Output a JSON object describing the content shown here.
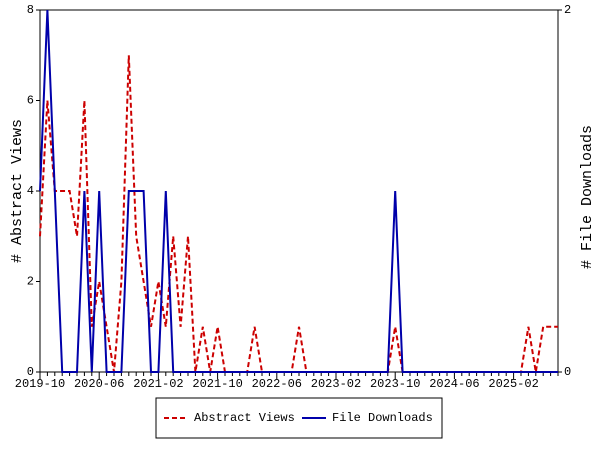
{
  "chart_data": {
    "type": "line",
    "categories": [
      "2019-10",
      null,
      null,
      null,
      null,
      null,
      null,
      null,
      "2020-06",
      null,
      null,
      null,
      null,
      null,
      null,
      null,
      "2021-02",
      null,
      null,
      null,
      null,
      null,
      null,
      null,
      "2021-10",
      null,
      null,
      null,
      null,
      null,
      null,
      null,
      "2022-06",
      null,
      null,
      null,
      null,
      null,
      null,
      null,
      "2023-02",
      null,
      null,
      null,
      null,
      null,
      null,
      null,
      "2023-10",
      null,
      null,
      null,
      null,
      null,
      null,
      null,
      "2024-06",
      null,
      null,
      null,
      null,
      null,
      null,
      null,
      "2025-02",
      null,
      null,
      null,
      null,
      null,
      null
    ],
    "y_label": "# Abstract Views",
    "y2_label": "# File Downloads",
    "ylim": [
      0,
      8
    ],
    "yticks": [
      0,
      2,
      4,
      6,
      8
    ],
    "y2lim": [
      0,
      2
    ],
    "y2ticks": [
      0,
      2
    ],
    "legend": "bottom",
    "series": [
      {
        "name": "Abstract Views",
        "color": "#cc0000",
        "dash": true,
        "values": [
          3,
          6,
          4,
          4,
          4,
          3,
          6,
          1,
          2,
          1,
          0,
          2,
          7,
          3,
          2,
          1,
          2,
          1,
          3,
          1,
          3,
          0,
          1,
          0,
          1,
          0,
          0,
          0,
          0,
          1,
          0,
          0,
          0,
          0,
          0,
          1,
          0,
          0,
          0,
          0,
          0,
          0,
          0,
          0,
          0,
          0,
          0,
          0,
          1,
          0,
          0,
          0,
          0,
          0,
          0,
          0,
          0,
          0,
          0,
          0,
          0,
          0,
          0,
          0,
          0,
          0,
          1,
          0,
          1,
          1,
          1
        ]
      },
      {
        "name": "File Downloads",
        "color": "#0000aa",
        "axis": "y2",
        "values": [
          1,
          2,
          1,
          0,
          0,
          0,
          1,
          0,
          1,
          0,
          0,
          0,
          1,
          1,
          1,
          0,
          0,
          1,
          0,
          0,
          0,
          0,
          0,
          0,
          0,
          0,
          0,
          0,
          0,
          0,
          0,
          0,
          0,
          0,
          0,
          0,
          0,
          0,
          0,
          0,
          0,
          0,
          0,
          0,
          0,
          0,
          0,
          0,
          1,
          0,
          0,
          0,
          0,
          0,
          0,
          0,
          0,
          0,
          0,
          0,
          0,
          0,
          0,
          0,
          0,
          0,
          0,
          0,
          0,
          0,
          0
        ]
      }
    ]
  }
}
